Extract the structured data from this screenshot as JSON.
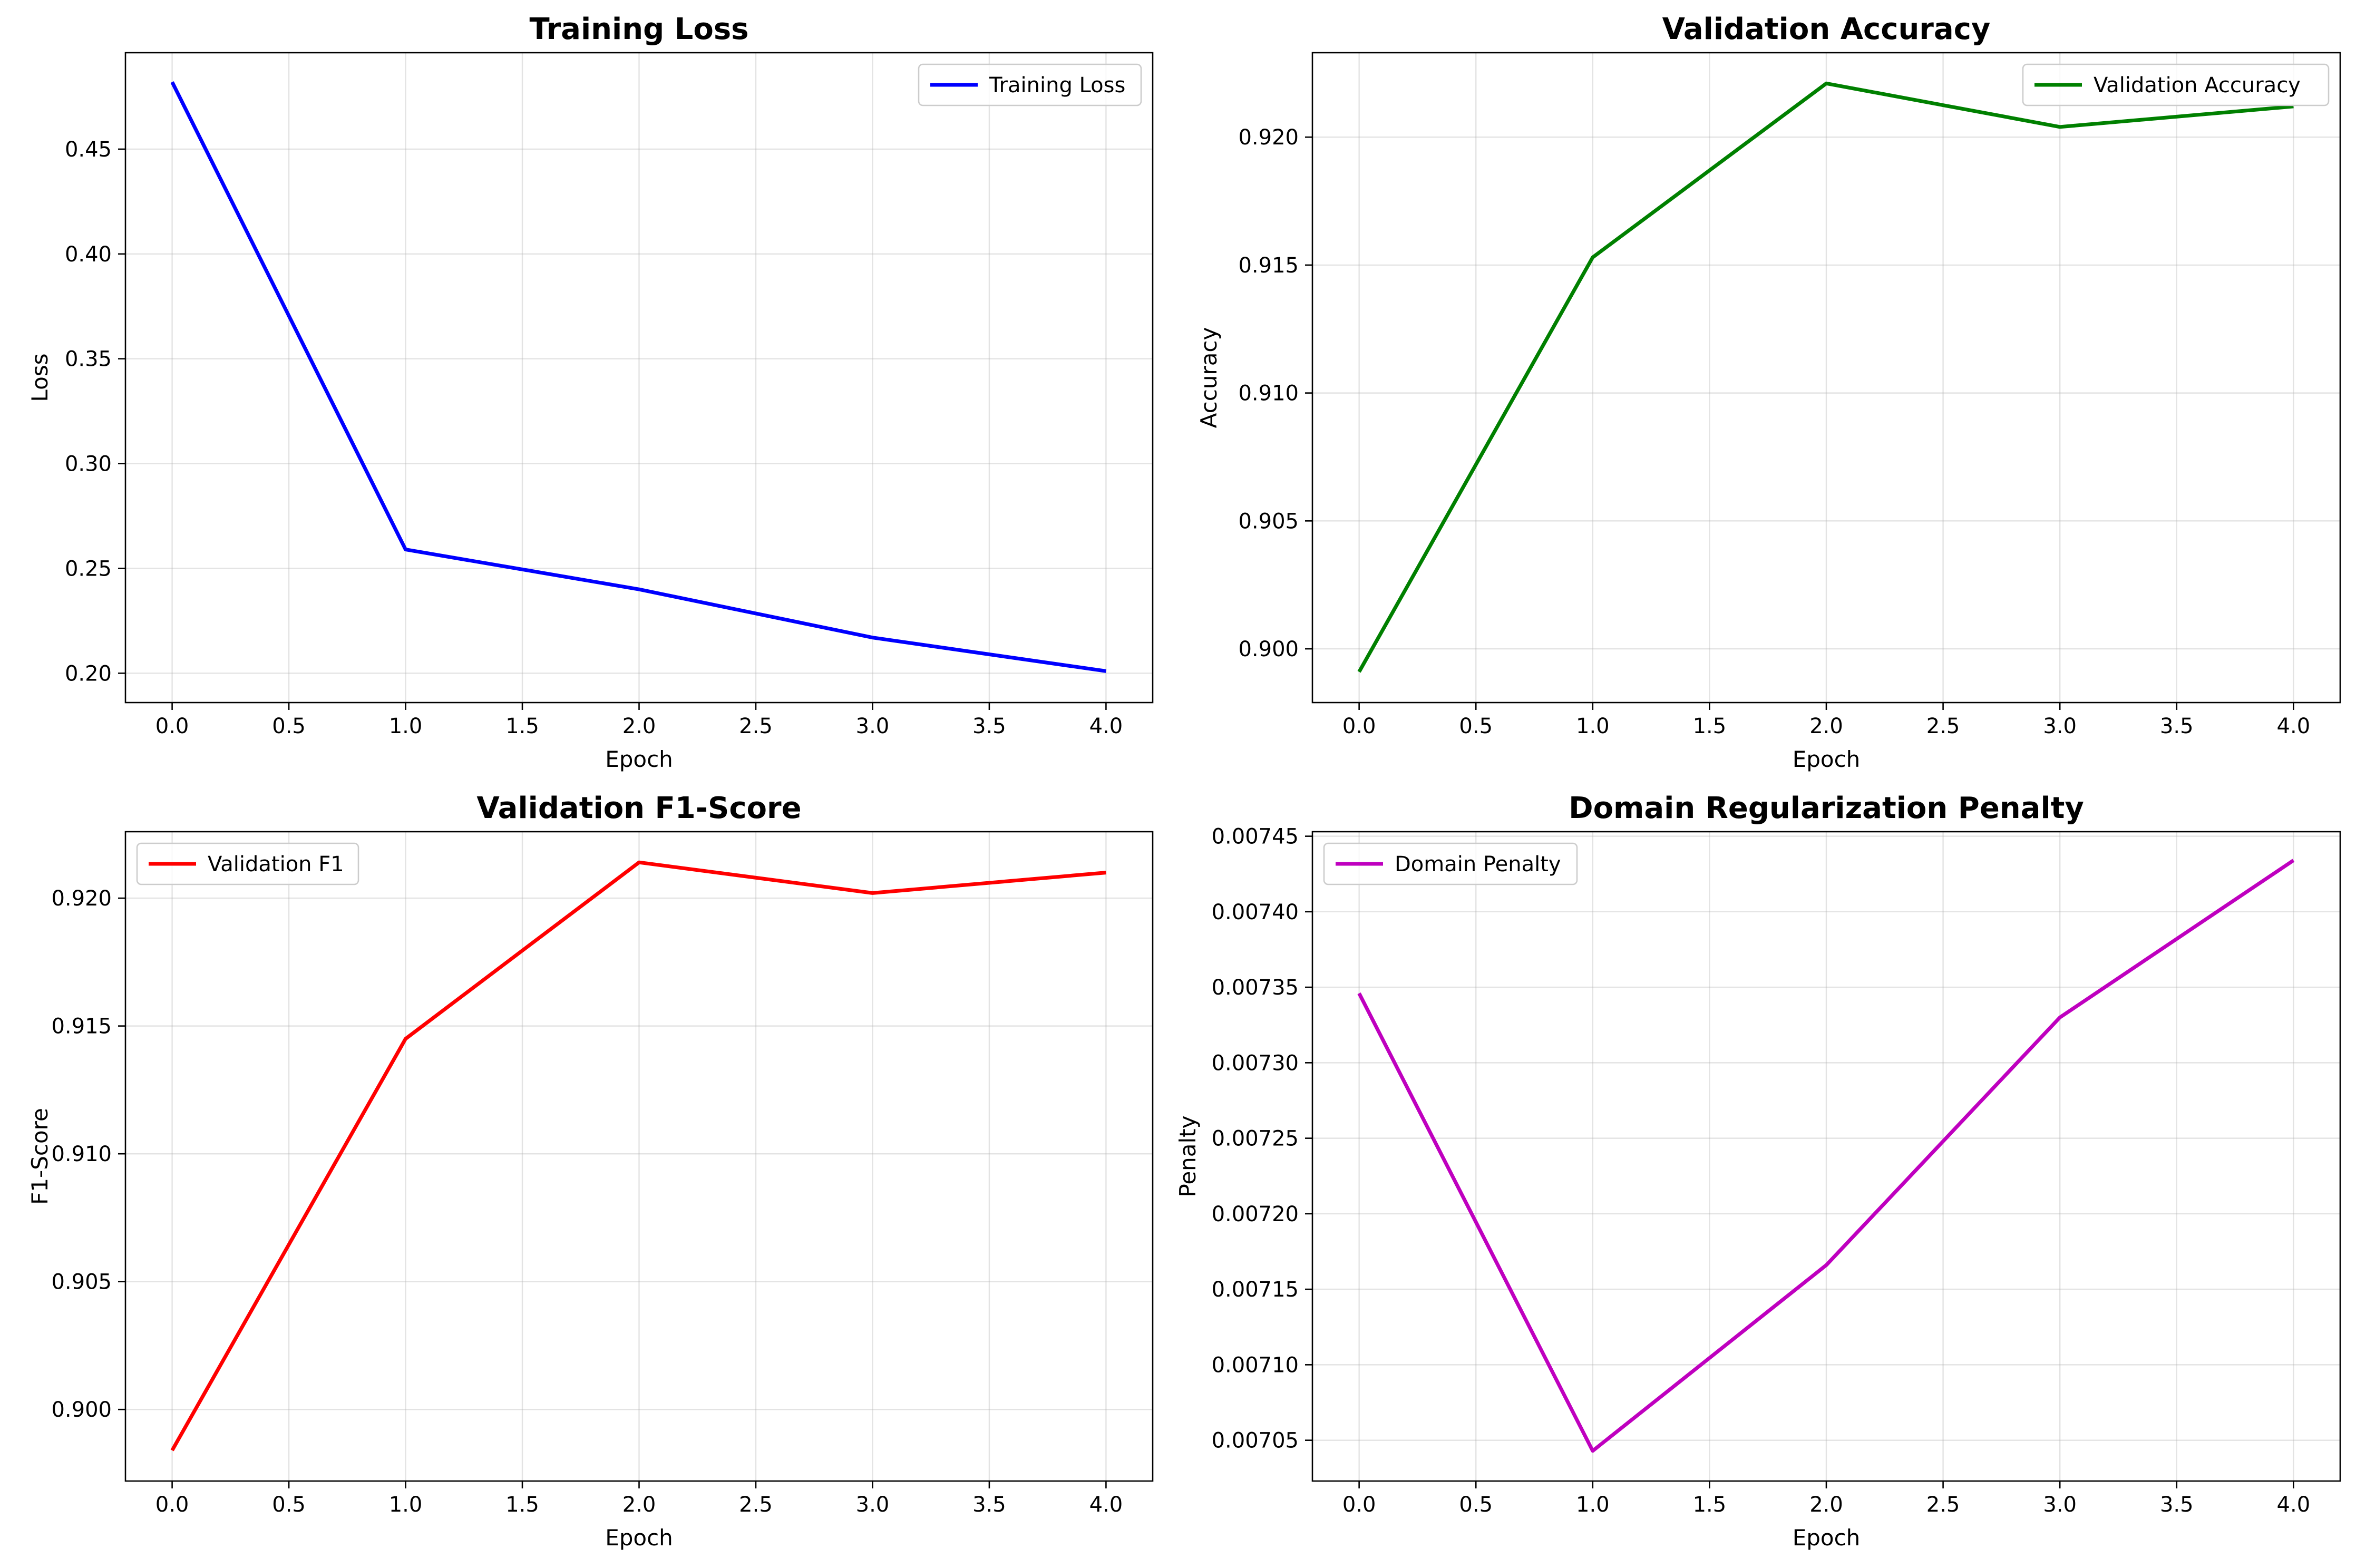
{
  "chart_data": [
    {
      "type": "line",
      "title": "Training Loss",
      "xlabel": "Epoch",
      "ylabel": "Loss",
      "x": [
        0,
        1,
        2,
        3,
        4
      ],
      "series": [
        {
          "name": "Training Loss",
          "color": "#0000ff",
          "values": [
            0.482,
            0.259,
            0.24,
            0.217,
            0.201
          ]
        }
      ],
      "xlim": [
        -0.2,
        4.2
      ],
      "ylim": [
        0.186,
        0.496
      ],
      "xticks": [
        0,
        0.5,
        1,
        1.5,
        2,
        2.5,
        3,
        3.5,
        4
      ],
      "xtick_labels": [
        "0.0",
        "0.5",
        "1.0",
        "1.5",
        "2.0",
        "2.5",
        "3.0",
        "3.5",
        "4.0"
      ],
      "yticks": [
        0.2,
        0.25,
        0.3,
        0.35,
        0.4,
        0.45
      ],
      "ytick_labels": [
        "0.20",
        "0.25",
        "0.30",
        "0.35",
        "0.40",
        "0.45"
      ],
      "grid": true,
      "legend": "upper right"
    },
    {
      "type": "line",
      "title": "Validation Accuracy",
      "xlabel": "Epoch",
      "ylabel": "Accuracy",
      "x": [
        0,
        1,
        2,
        3,
        4
      ],
      "series": [
        {
          "name": "Validation Accuracy",
          "color": "#008000",
          "values": [
            0.8991,
            0.9153,
            0.9221,
            0.9204,
            0.9212
          ]
        }
      ],
      "xlim": [
        -0.2,
        4.2
      ],
      "ylim": [
        0.8979,
        0.9233
      ],
      "xticks": [
        0,
        0.5,
        1,
        1.5,
        2,
        2.5,
        3,
        3.5,
        4
      ],
      "xtick_labels": [
        "0.0",
        "0.5",
        "1.0",
        "1.5",
        "2.0",
        "2.5",
        "3.0",
        "3.5",
        "4.0"
      ],
      "yticks": [
        0.9,
        0.905,
        0.91,
        0.915,
        0.92
      ],
      "ytick_labels": [
        "0.900",
        "0.905",
        "0.910",
        "0.915",
        "0.920"
      ],
      "grid": true,
      "legend": "upper right"
    },
    {
      "type": "line",
      "title": "Validation F1-Score",
      "xlabel": "Epoch",
      "ylabel": "F1-Score",
      "x": [
        0,
        1,
        2,
        3,
        4
      ],
      "series": [
        {
          "name": "Validation F1",
          "color": "#ff0000",
          "values": [
            0.8984,
            0.9145,
            0.9214,
            0.9202,
            0.921
          ]
        }
      ],
      "xlim": [
        -0.2,
        4.2
      ],
      "ylim": [
        0.8972,
        0.9226
      ],
      "xticks": [
        0,
        0.5,
        1,
        1.5,
        2,
        2.5,
        3,
        3.5,
        4
      ],
      "xtick_labels": [
        "0.0",
        "0.5",
        "1.0",
        "1.5",
        "2.0",
        "2.5",
        "3.0",
        "3.5",
        "4.0"
      ],
      "yticks": [
        0.9,
        0.905,
        0.91,
        0.915,
        0.92
      ],
      "ytick_labels": [
        "0.900",
        "0.905",
        "0.910",
        "0.915",
        "0.920"
      ],
      "grid": true,
      "legend": "upper left"
    },
    {
      "type": "line",
      "title": "Domain Regularization Penalty",
      "xlabel": "Epoch",
      "ylabel": "Penalty",
      "x": [
        0,
        1,
        2,
        3,
        4
      ],
      "series": [
        {
          "name": "Domain Penalty",
          "color": "#bf00bf",
          "values": [
            0.007346,
            0.007043,
            0.007166,
            0.00733,
            0.007434
          ]
        }
      ],
      "xlim": [
        -0.2,
        4.2
      ],
      "ylim": [
        0.007023,
        0.007453
      ],
      "xticks": [
        0,
        0.5,
        1,
        1.5,
        2,
        2.5,
        3,
        3.5,
        4
      ],
      "xtick_labels": [
        "0.0",
        "0.5",
        "1.0",
        "1.5",
        "2.0",
        "2.5",
        "3.0",
        "3.5",
        "4.0"
      ],
      "yticks": [
        0.00705,
        0.0071,
        0.00715,
        0.0072,
        0.00725,
        0.0073,
        0.00735,
        0.0074,
        0.00745
      ],
      "ytick_labels": [
        "0.00705",
        "0.00710",
        "0.00715",
        "0.00720",
        "0.00725",
        "0.00730",
        "0.00735",
        "0.00740",
        "0.00745"
      ],
      "grid": true,
      "legend": "upper left"
    }
  ]
}
